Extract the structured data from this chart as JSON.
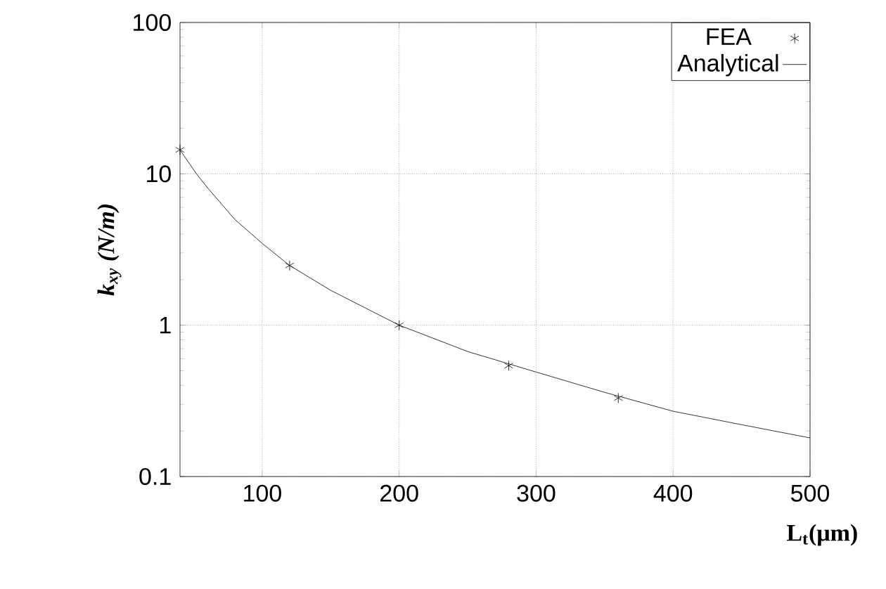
{
  "chart_data": {
    "type": "line",
    "xlabel": "L$_{t}$(μm)",
    "ylabel": "k$_{xy}$ (N/m)",
    "log": "y",
    "grid": true,
    "legend": "top right",
    "xlim": [
      40,
      500
    ],
    "ylim": [
      0.1,
      100
    ],
    "xticks": [
      100,
      200,
      300,
      400,
      500
    ],
    "yticks": [
      0.1,
      1,
      10,
      100
    ],
    "series": [
      {
        "name": "FEA",
        "type": "scatter",
        "marker": "cross",
        "color": "#000000",
        "x": [
          40,
          120,
          200,
          280,
          360
        ],
        "values": [
          14.4,
          2.48,
          1.0,
          0.54,
          0.33
        ]
      },
      {
        "name": "Analytical",
        "type": "line",
        "marker": "none",
        "line_style": "solid",
        "color": "#000000",
        "x": [
          40,
          52,
          60,
          80,
          100,
          120,
          150,
          200,
          250,
          300,
          350,
          400,
          450,
          500
        ],
        "values": [
          14.4,
          10,
          8.1,
          5.0,
          3.47,
          2.48,
          1.7,
          1.0,
          0.67,
          0.49,
          0.36,
          0.27,
          0.22,
          0.18
        ]
      }
    ]
  }
}
